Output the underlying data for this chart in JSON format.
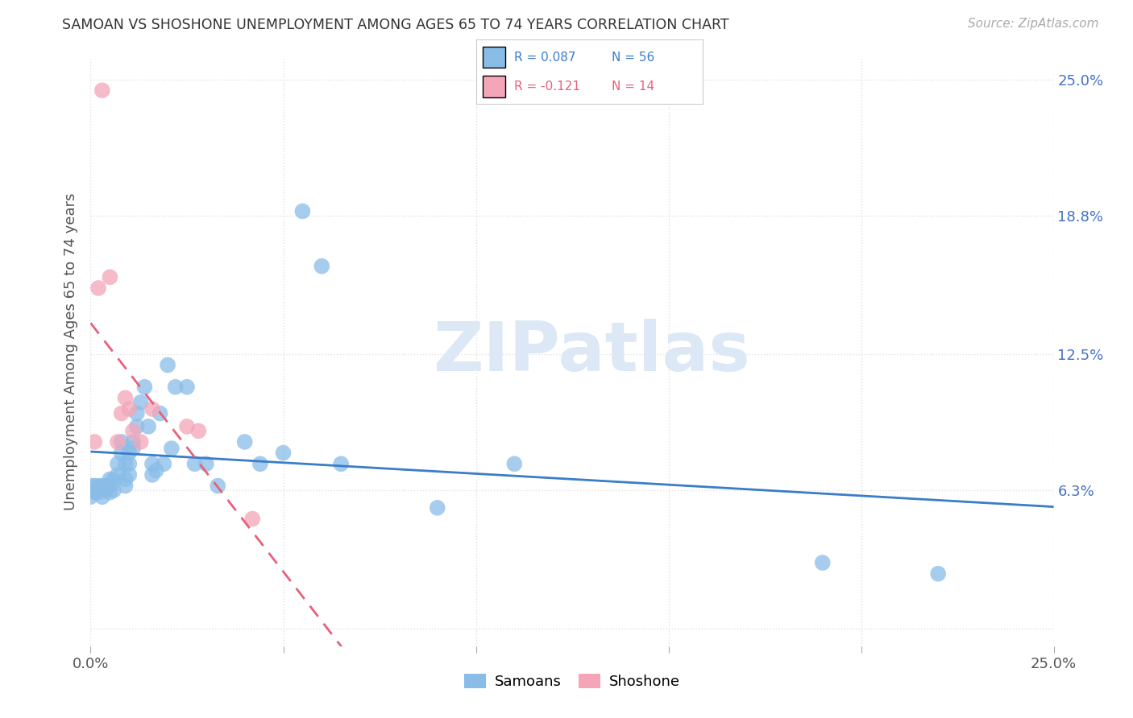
{
  "title": "SAMOAN VS SHOSHONE UNEMPLOYMENT AMONG AGES 65 TO 74 YEARS CORRELATION CHART",
  "source": "Source: ZipAtlas.com",
  "ylabel": "Unemployment Among Ages 65 to 74 years",
  "xlim": [
    0.0,
    0.25
  ],
  "ylim": [
    -0.008,
    0.26
  ],
  "xtick_positions": [
    0.0,
    0.05,
    0.1,
    0.15,
    0.2,
    0.25
  ],
  "xticklabels": [
    "0.0%",
    "",
    "",
    "",
    "",
    "25.0%"
  ],
  "ytick_positions": [
    0.0,
    0.063,
    0.125,
    0.188,
    0.25
  ],
  "ytick_labels": [
    "",
    "6.3%",
    "12.5%",
    "18.8%",
    "25.0%"
  ],
  "samoans_color": "#89bde8",
  "shoshone_color": "#f4a5b8",
  "watermark_color": "#dce8f5",
  "grid_color": "#e0e0e0",
  "trend_samoan_color": "#3a7dc9",
  "trend_shoshone_color": "#e8607a",
  "background_color": "#ffffff",
  "samoans_x": [
    0.0,
    0.0,
    0.0,
    0.001,
    0.001,
    0.002,
    0.002,
    0.003,
    0.003,
    0.003,
    0.004,
    0.004,
    0.005,
    0.005,
    0.005,
    0.006,
    0.006,
    0.007,
    0.007,
    0.008,
    0.008,
    0.009,
    0.009,
    0.009,
    0.01,
    0.01,
    0.01,
    0.011,
    0.011,
    0.012,
    0.012,
    0.013,
    0.014,
    0.015,
    0.016,
    0.016,
    0.017,
    0.018,
    0.019,
    0.02,
    0.021,
    0.022,
    0.025,
    0.027,
    0.03,
    0.033,
    0.04,
    0.044,
    0.05,
    0.055,
    0.06,
    0.065,
    0.09,
    0.11,
    0.19,
    0.22
  ],
  "samoans_y": [
    0.065,
    0.063,
    0.06,
    0.065,
    0.062,
    0.065,
    0.062,
    0.065,
    0.063,
    0.06,
    0.065,
    0.063,
    0.068,
    0.065,
    0.062,
    0.068,
    0.063,
    0.075,
    0.07,
    0.085,
    0.08,
    0.075,
    0.068,
    0.065,
    0.08,
    0.075,
    0.07,
    0.085,
    0.082,
    0.098,
    0.092,
    0.103,
    0.11,
    0.092,
    0.075,
    0.07,
    0.072,
    0.098,
    0.075,
    0.12,
    0.082,
    0.11,
    0.11,
    0.075,
    0.075,
    0.065,
    0.085,
    0.075,
    0.08,
    0.19,
    0.165,
    0.075,
    0.055,
    0.075,
    0.03,
    0.025
  ],
  "shoshone_x": [
    0.001,
    0.002,
    0.003,
    0.005,
    0.007,
    0.008,
    0.009,
    0.01,
    0.011,
    0.013,
    0.016,
    0.025,
    0.028,
    0.042
  ],
  "shoshone_y": [
    0.085,
    0.155,
    0.245,
    0.16,
    0.085,
    0.098,
    0.105,
    0.1,
    0.09,
    0.085,
    0.1,
    0.092,
    0.09,
    0.05
  ],
  "legend_text_samoan_color": "#3a7dc9",
  "legend_text_shoshone_color": "#e8607a"
}
